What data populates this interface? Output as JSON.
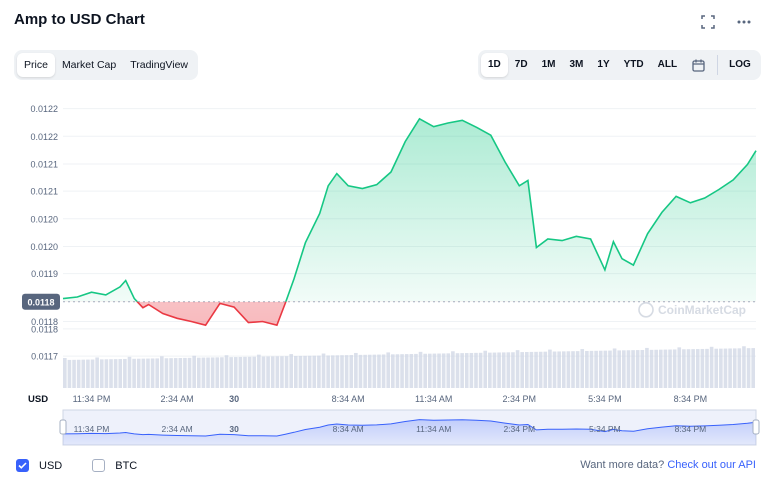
{
  "header": {
    "title": "Amp to USD Chart",
    "fullscreen_icon": "fullscreen-icon",
    "more_icon": "more-dots-icon"
  },
  "type_tabs": [
    {
      "label": "Price",
      "active": true
    },
    {
      "label": "Market Cap",
      "active": false
    },
    {
      "label": "TradingView",
      "active": false
    }
  ],
  "range_tabs": [
    {
      "label": "1D",
      "active": true
    },
    {
      "label": "7D",
      "active": false
    },
    {
      "label": "1M",
      "active": false
    },
    {
      "label": "3M",
      "active": false
    },
    {
      "label": "1Y",
      "active": false
    },
    {
      "label": "YTD",
      "active": false
    },
    {
      "label": "ALL",
      "active": false
    }
  ],
  "calendar_icon": "calendar-icon",
  "log_label": "LOG",
  "colors": {
    "up": "#16c784",
    "down": "#ea3943",
    "accent": "#3861fb",
    "volume": "#cfd6e4",
    "nav": "#3861fb"
  },
  "chart_data": {
    "type": "line",
    "xlabel": "",
    "ylabel": "",
    "currency_label": "USD",
    "watermark": "CoinMarketCap",
    "ylim": [
      0.011675,
      0.01222
    ],
    "y_tick_labels": [
      "0.0122",
      "0.0122",
      "0.0121",
      "0.0121",
      "0.0120",
      "0.0120",
      "0.0119",
      "0.0118",
      "0.0118",
      "0.0117"
    ],
    "y_tick_values": [
      0.0122,
      0.012148,
      0.012096,
      0.012045,
      0.011993,
      0.011941,
      0.01189,
      0.0118,
      0.011786,
      0.011735
    ],
    "baseline": {
      "label": "0.0118",
      "value": 0.011837
    },
    "x_tick_labels": [
      "11:34 PM",
      "2:34 AM",
      "30",
      "8:34 AM",
      "11:34 AM",
      "2:34 PM",
      "5:34 PM",
      "8:34 PM"
    ],
    "x_tick_positions": [
      1.0,
      4.0,
      6.0,
      10.0,
      13.0,
      16.0,
      19.0,
      22.0
    ],
    "xlim": [
      0,
      24.3
    ],
    "grid": true,
    "series": [
      {
        "x": [
          0.0,
          0.5,
          1.0,
          1.5,
          2.0,
          2.2,
          2.5,
          2.8,
          3.0,
          3.5,
          4.0,
          4.5,
          5.0,
          5.5,
          6.0,
          6.5,
          7.0,
          7.5,
          7.8,
          8.1,
          8.5,
          9.0,
          9.3,
          9.6,
          10.0,
          10.5,
          11.0,
          11.5,
          12.0,
          12.5,
          13.0,
          13.5,
          14.0,
          14.5,
          15.0,
          15.5,
          16.0,
          16.3,
          16.6,
          17.0,
          17.5,
          18.0,
          18.5,
          19.0,
          19.3,
          19.6,
          20.0,
          20.5,
          21.0,
          21.5,
          22.0,
          22.5,
          23.0,
          23.5,
          24.0,
          24.3
        ],
        "y": [
          11.843,
          11.846,
          11.855,
          11.85,
          11.865,
          11.877,
          11.843,
          11.826,
          11.832,
          11.815,
          11.806,
          11.8,
          11.793,
          11.834,
          11.827,
          11.798,
          11.8,
          11.793,
          11.835,
          11.88,
          11.948,
          12.003,
          12.055,
          12.078,
          12.055,
          12.05,
          12.057,
          12.081,
          12.138,
          12.181,
          12.166,
          12.173,
          12.178,
          12.165,
          12.15,
          12.1,
          12.055,
          12.065,
          11.939,
          11.955,
          11.952,
          11.96,
          11.955,
          11.897,
          11.95,
          11.918,
          11.906,
          11.965,
          12.005,
          12.035,
          12.023,
          12.032,
          12.048,
          12.066,
          12.095,
          12.121
        ]
      }
    ],
    "volume_note": "volume bars along the bottom"
  },
  "footer": {
    "options": [
      {
        "label": "USD",
        "checked": true
      },
      {
        "label": "BTC",
        "checked": false
      }
    ],
    "more_text": "Want more data?",
    "api_link": "Check out our API"
  }
}
